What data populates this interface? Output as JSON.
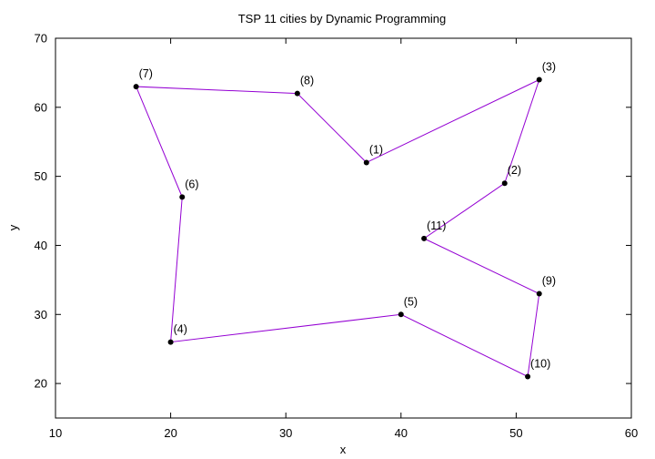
{
  "chart_data": {
    "type": "line",
    "title": "TSP 11 cities by Dynamic Programming",
    "xlabel": "x",
    "ylabel": "y",
    "xlim": [
      10,
      60
    ],
    "ylim": [
      15,
      70
    ],
    "xticks": [
      10,
      20,
      30,
      40,
      50,
      60
    ],
    "yticks": [
      20,
      30,
      40,
      50,
      60,
      70
    ],
    "grid": false,
    "legend": "none",
    "series": [
      {
        "line_color": "#9400d3",
        "marker_color": "#000000",
        "points": [
          {
            "label": "(1)",
            "x": 37,
            "y": 52
          },
          {
            "label": "(3)",
            "x": 52,
            "y": 64
          },
          {
            "label": "(2)",
            "x": 49,
            "y": 49
          },
          {
            "label": "(11)",
            "x": 42,
            "y": 41
          },
          {
            "label": "(9)",
            "x": 52,
            "y": 33
          },
          {
            "label": "(10)",
            "x": 51,
            "y": 21
          },
          {
            "label": "(5)",
            "x": 40,
            "y": 30
          },
          {
            "label": "(4)",
            "x": 20,
            "y": 26
          },
          {
            "label": "(6)",
            "x": 21,
            "y": 47
          },
          {
            "label": "(7)",
            "x": 17,
            "y": 63
          },
          {
            "label": "(8)",
            "x": 31,
            "y": 62
          },
          {
            "label": "(1)",
            "x": 37,
            "y": 52
          }
        ]
      }
    ]
  }
}
